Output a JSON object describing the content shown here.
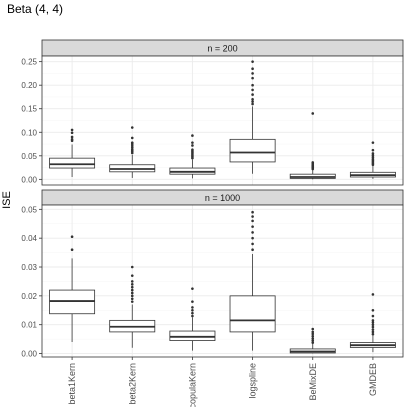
{
  "title": "Beta (4, 4)",
  "ylabel": "ISE",
  "categories": [
    "beta1Kern",
    "beta2Kern",
    "copulaKern",
    "logspline",
    "BeMixDE",
    "GMDEB"
  ],
  "colors": {
    "panel_border": "#333333",
    "strip_fill": "#d9d9d9",
    "grid_major": "#ebebeb",
    "grid_minor": "#f5f5f5",
    "box_line": "#333333"
  },
  "chart_data": [
    {
      "type": "boxplot",
      "panel": "n = 200",
      "ylim": [
        -0.012,
        0.262
      ],
      "yticks": [
        0.0,
        0.05,
        0.1,
        0.15,
        0.2,
        0.25
      ],
      "ytick_labels": [
        "0.00",
        "0.05",
        "0.10",
        "0.15",
        "0.20",
        "0.25"
      ],
      "boxes": [
        {
          "q1": 0.024,
          "median": 0.032,
          "q3": 0.045,
          "lo": 0.005,
          "hi": 0.074,
          "outliers": [
            0.082,
            0.085,
            0.09,
            0.099,
            0.105
          ]
        },
        {
          "q1": 0.016,
          "median": 0.022,
          "q3": 0.031,
          "lo": 0.003,
          "hi": 0.052,
          "outliers": [
            0.056,
            0.06,
            0.063,
            0.067,
            0.071,
            0.075,
            0.078,
            0.088,
            0.11
          ]
        },
        {
          "q1": 0.011,
          "median": 0.016,
          "q3": 0.024,
          "lo": 0.002,
          "hi": 0.042,
          "outliers": [
            0.045,
            0.048,
            0.051,
            0.054,
            0.057,
            0.06,
            0.063,
            0.072,
            0.078,
            0.093
          ]
        },
        {
          "q1": 0.037,
          "median": 0.057,
          "q3": 0.085,
          "lo": 0.012,
          "hi": 0.155,
          "outliers": [
            0.16,
            0.165,
            0.17,
            0.18,
            0.19,
            0.2,
            0.215,
            0.225,
            0.235,
            0.25
          ]
        },
        {
          "q1": 0.002,
          "median": 0.005,
          "q3": 0.011,
          "lo": 0.0,
          "hi": 0.02,
          "outliers": [
            0.022,
            0.024,
            0.026,
            0.028,
            0.03,
            0.033,
            0.036,
            0.14
          ]
        },
        {
          "q1": 0.005,
          "median": 0.009,
          "q3": 0.015,
          "lo": 0.001,
          "hi": 0.029,
          "outliers": [
            0.031,
            0.034,
            0.037,
            0.04,
            0.043,
            0.047,
            0.051,
            0.055,
            0.062,
            0.078
          ]
        }
      ]
    },
    {
      "type": "boxplot",
      "panel": "n = 1000",
      "ylim": [
        -0.0012,
        0.0515
      ],
      "yticks": [
        0.0,
        0.01,
        0.02,
        0.03,
        0.04,
        0.05
      ],
      "ytick_labels": [
        "0.00",
        "0.01",
        "0.02",
        "0.03",
        "0.04",
        "0.05"
      ],
      "boxes": [
        {
          "q1": 0.0138,
          "median": 0.0182,
          "q3": 0.022,
          "lo": 0.004,
          "hi": 0.033,
          "outliers": [
            0.036,
            0.0405
          ]
        },
        {
          "q1": 0.0075,
          "median": 0.0093,
          "q3": 0.0115,
          "lo": 0.002,
          "hi": 0.017,
          "outliers": [
            0.018,
            0.019,
            0.02,
            0.021,
            0.022,
            0.023,
            0.024,
            0.025,
            0.027,
            0.03
          ]
        },
        {
          "q1": 0.0045,
          "median": 0.0058,
          "q3": 0.0078,
          "lo": 0.001,
          "hi": 0.0125,
          "outliers": [
            0.013,
            0.014,
            0.015,
            0.016,
            0.018,
            0.0225
          ]
        },
        {
          "q1": 0.0075,
          "median": 0.0115,
          "q3": 0.02,
          "lo": 0.001,
          "hi": 0.0345,
          "outliers": [
            0.036,
            0.038,
            0.04,
            0.042,
            0.044,
            0.046,
            0.0475,
            0.049
          ]
        },
        {
          "q1": 0.0002,
          "median": 0.0007,
          "q3": 0.0016,
          "lo": 0.0,
          "hi": 0.0035,
          "outliers": [
            0.0038,
            0.0045,
            0.0052,
            0.006,
            0.0068,
            0.0075,
            0.0085
          ]
        },
        {
          "q1": 0.0021,
          "median": 0.0029,
          "q3": 0.0038,
          "lo": 0.0005,
          "hi": 0.0062,
          "outliers": [
            0.0067,
            0.0075,
            0.0083,
            0.0092,
            0.01,
            0.0108,
            0.0115,
            0.013,
            0.015,
            0.0205
          ]
        }
      ]
    }
  ]
}
